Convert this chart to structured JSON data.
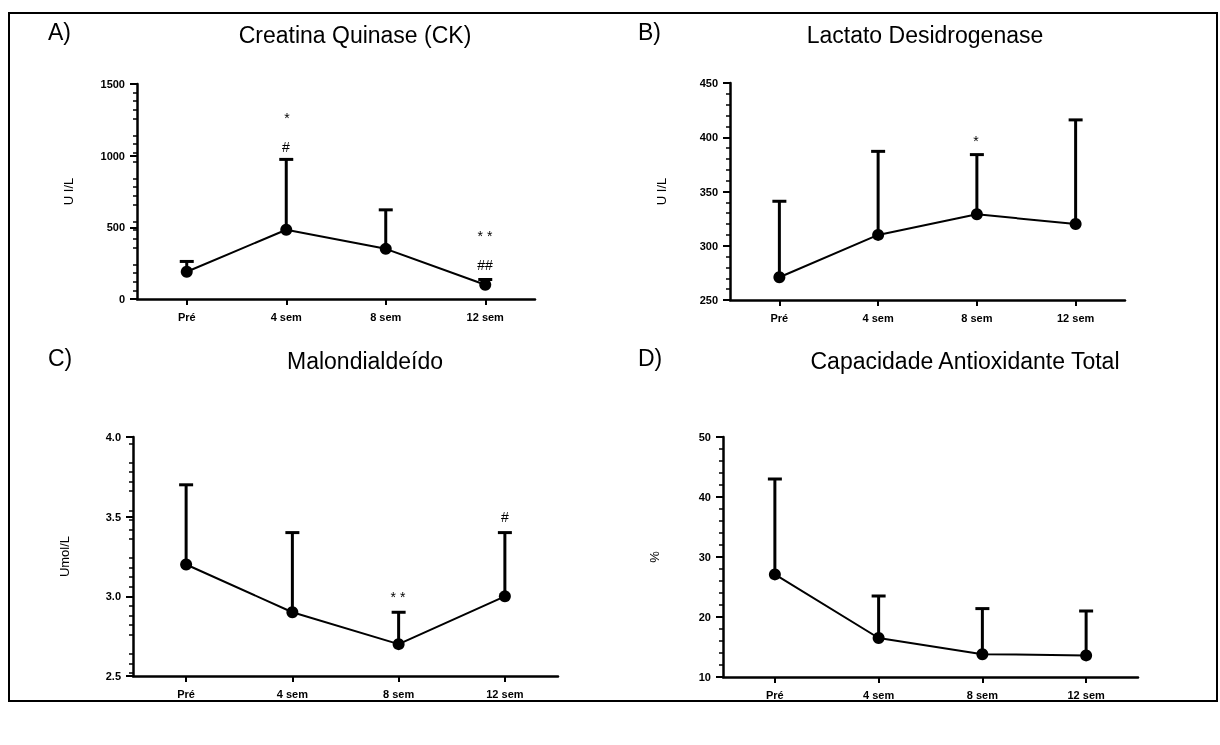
{
  "chart_data": [
    {
      "type": "line",
      "title": "Creatina Quinase (CK)",
      "ylabel": "U I/L",
      "categories": [
        "Pré",
        "4 sem",
        "8 sem",
        "12 sem"
      ],
      "series": [
        {
          "color": "#000000",
          "values": [
            190,
            483,
            350,
            99
          ],
          "errors": [
            [
              190,
              262
            ],
            [
              483,
              974
            ],
            [
              350,
              622
            ],
            [
              99,
              136
            ]
          ]
        }
      ],
      "ylim": [
        0,
        1500
      ],
      "yticks": [
        0,
        500,
        1000,
        1500
      ],
      "marker": "circle",
      "line_style": "solid",
      "annotations": [
        "A)",
        "*",
        "#",
        "* *",
        "##"
      ]
    },
    {
      "type": "line",
      "title": "Lactato Desidrogenase",
      "ylabel": "U I/L",
      "categories": [
        "Pré",
        "4 sem",
        "8 sem",
        "12 sem"
      ],
      "series": [
        {
          "color": "#000000",
          "values": [
            271,
            310,
            329,
            320
          ],
          "errors": [
            [
              271,
              341
            ],
            [
              310,
              387
            ],
            [
              329,
              384
            ],
            [
              320,
              416
            ]
          ]
        }
      ],
      "ylim": [
        250,
        450
      ],
      "yticks": [
        250,
        300,
        350,
        400,
        450
      ],
      "marker": "circle",
      "line_style": "solid",
      "annotations": [
        "B)",
        "*"
      ]
    },
    {
      "type": "line",
      "title": "Malondialdeído",
      "ylabel": "Umol/L",
      "categories": [
        "Pré",
        "4 sem",
        "8 sem",
        "12 sem"
      ],
      "series": [
        {
          "color": "#000000",
          "values": [
            3.2,
            2.9,
            2.7,
            3.0
          ],
          "errors": [
            [
              3.2,
              3.7
            ],
            [
              2.9,
              3.4
            ],
            [
              2.7,
              2.9
            ],
            [
              3.0,
              3.4
            ]
          ]
        }
      ],
      "ylim": [
        2.5,
        4.0
      ],
      "yticks": [
        {
          "value": 2.5,
          "label": "2.5"
        },
        {
          "value": 3.0,
          "label": "3.0"
        },
        {
          "value": 3.5,
          "label": "3.5"
        },
        {
          "value": 4.0,
          "label": "4.0"
        }
      ],
      "marker": "circle",
      "line_style": "solid",
      "annotations": [
        "C)",
        "* *",
        "#"
      ]
    },
    {
      "type": "line",
      "title": "Capacidade Antioxidante Total",
      "ylabel": "%",
      "categories": [
        "Pré",
        "4 sem",
        "8 sem",
        "12 sem"
      ],
      "series": [
        {
          "color": "#000000",
          "values": [
            27.1,
            16.5,
            13.8,
            13.6
          ],
          "errors": [
            [
              27.1,
              43.0
            ],
            [
              16.5,
              23.5
            ],
            [
              13.8,
              21.4
            ],
            [
              13.6,
              21.0
            ]
          ]
        }
      ],
      "ylim": [
        10,
        50
      ],
      "yticks": [
        10,
        20,
        30,
        40,
        50
      ],
      "marker": "circle",
      "line_style": "solid",
      "annotations": [
        "D)"
      ]
    }
  ]
}
